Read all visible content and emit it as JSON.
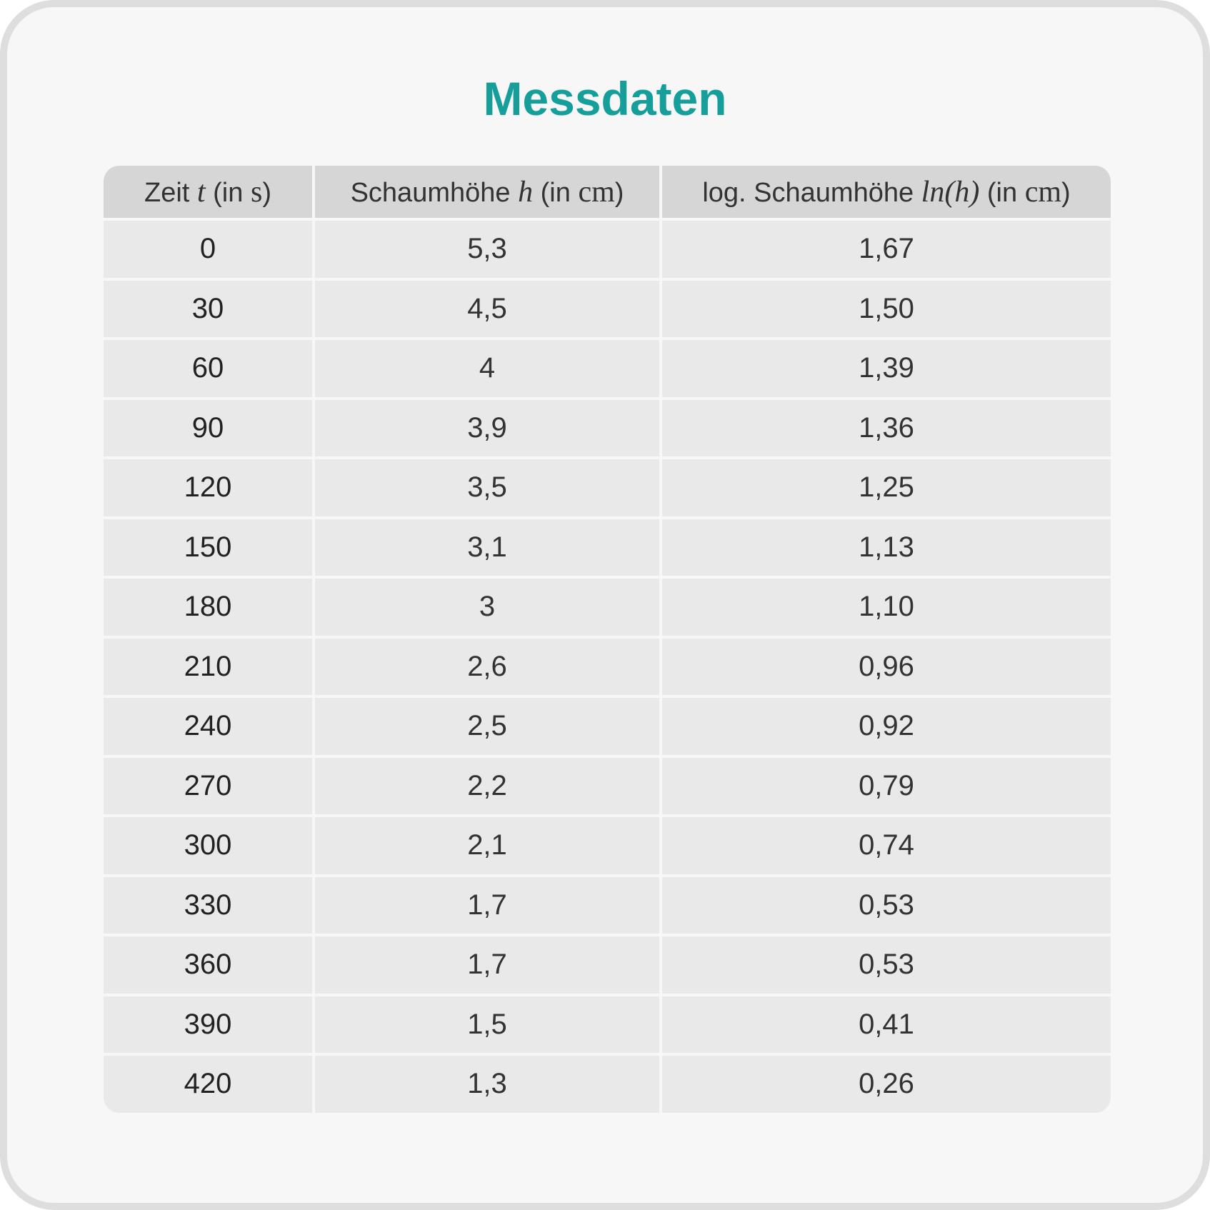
{
  "title": "Messdaten",
  "table": {
    "headers": [
      {
        "pre": "Zeit ",
        "var": "t",
        "mid": " (in ",
        "unit": "s",
        "post": ")"
      },
      {
        "pre": "Schaumhöhe ",
        "var": "h",
        "mid": " (in ",
        "unit": "cm",
        "post": ")"
      },
      {
        "pre": "log. Schaumhöhe ",
        "var": "ln(h)",
        "mid": " (in ",
        "unit": "cm",
        "post": ")"
      }
    ],
    "rows": [
      [
        "0",
        "5,3",
        "1,67"
      ],
      [
        "30",
        "4,5",
        "1,50"
      ],
      [
        "60",
        "4",
        "1,39"
      ],
      [
        "90",
        "3,9",
        "1,36"
      ],
      [
        "120",
        "3,5",
        "1,25"
      ],
      [
        "150",
        "3,1",
        "1,13"
      ],
      [
        "180",
        "3",
        "1,10"
      ],
      [
        "210",
        "2,6",
        "0,96"
      ],
      [
        "240",
        "2,5",
        "0,92"
      ],
      [
        "270",
        "2,2",
        "0,79"
      ],
      [
        "300",
        "2,1",
        "0,74"
      ],
      [
        "330",
        "1,7",
        "0,53"
      ],
      [
        "360",
        "1,7",
        "0,53"
      ],
      [
        "390",
        "1,5",
        "0,41"
      ],
      [
        "420",
        "1,3",
        "0,26"
      ]
    ]
  },
  "colors": {
    "title": "#169e9a",
    "card_background": "#f7f7f7",
    "card_border": "#dedede",
    "header_background": "#d6d6d6",
    "cell_background": "#e9e9e9"
  }
}
